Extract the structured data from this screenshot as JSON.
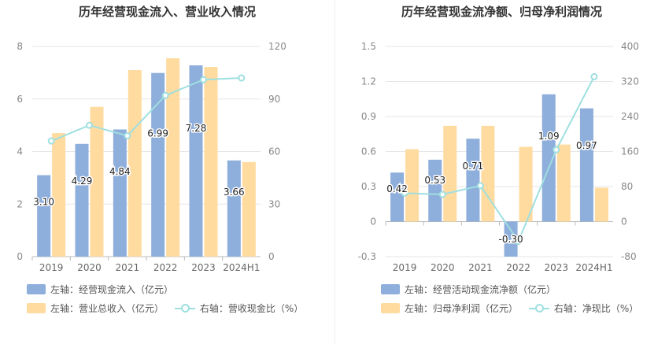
{
  "chart_data": [
    {
      "type": "bar",
      "title": "历年经营现金流入、营业收入情况",
      "categories": [
        "2019",
        "2020",
        "2021",
        "2022",
        "2023",
        "2024H1"
      ],
      "left_axis": {
        "min": 0,
        "max": 8,
        "ticks": [
          "0",
          "2",
          "4",
          "6",
          "8"
        ]
      },
      "right_axis": {
        "min": 0,
        "max": 120,
        "ticks": [
          "0",
          "30",
          "60",
          "90",
          "120"
        ]
      },
      "series": [
        {
          "name": "左轴：经营现金流入（亿元）",
          "kind": "bar",
          "axis": "left",
          "color": "#8eaedb",
          "values": [
            3.1,
            4.29,
            4.84,
            6.99,
            7.28,
            3.66
          ],
          "labels": [
            "3.10",
            "4.29",
            "4.84",
            "6.99",
            "7.28",
            "3.66"
          ]
        },
        {
          "name": "左轴：营业总收入（亿元）",
          "kind": "bar",
          "axis": "left",
          "color": "#ffdba0",
          "values": [
            4.7,
            5.7,
            7.1,
            7.55,
            7.22,
            3.6
          ]
        },
        {
          "name": "右轴：营收现金比（%）",
          "kind": "line",
          "axis": "right",
          "color": "#9fdfe0",
          "values": [
            66,
            75,
            69,
            92,
            101,
            102
          ]
        }
      ],
      "grid": true,
      "legend_position": "bottom-left"
    },
    {
      "type": "bar",
      "title": "历年经营现金流净额、归母净利润情况",
      "categories": [
        "2019",
        "2020",
        "2021",
        "2022",
        "2023",
        "2024H1"
      ],
      "left_axis": {
        "min": -0.3,
        "max": 1.5,
        "ticks": [
          "-0.3",
          "0",
          "0.3",
          "0.6",
          "0.9",
          "1.2",
          "1.5"
        ]
      },
      "right_axis": {
        "min": -80,
        "max": 400,
        "ticks": [
          "-80",
          "0",
          "80",
          "160",
          "240",
          "320",
          "400"
        ]
      },
      "series": [
        {
          "name": "左轴：经营活动现金流净额（亿元）",
          "kind": "bar",
          "axis": "left",
          "color": "#8eaedb",
          "values": [
            0.42,
            0.53,
            0.71,
            -0.3,
            1.09,
            0.97
          ],
          "labels": [
            "0.42",
            "0.53",
            "0.71",
            "-0.30",
            "1.09",
            "0.97"
          ]
        },
        {
          "name": "左轴：归母净利润（亿元）",
          "kind": "bar",
          "axis": "left",
          "color": "#ffdba0",
          "values": [
            0.62,
            0.82,
            0.82,
            0.64,
            0.66,
            0.29
          ]
        },
        {
          "name": "右轴：净现比（%）",
          "kind": "line",
          "axis": "right",
          "color": "#9fdfe0",
          "values": [
            65,
            62,
            82,
            -45,
            164,
            331
          ]
        }
      ],
      "grid": true,
      "legend_position": "bottom-left"
    }
  ]
}
